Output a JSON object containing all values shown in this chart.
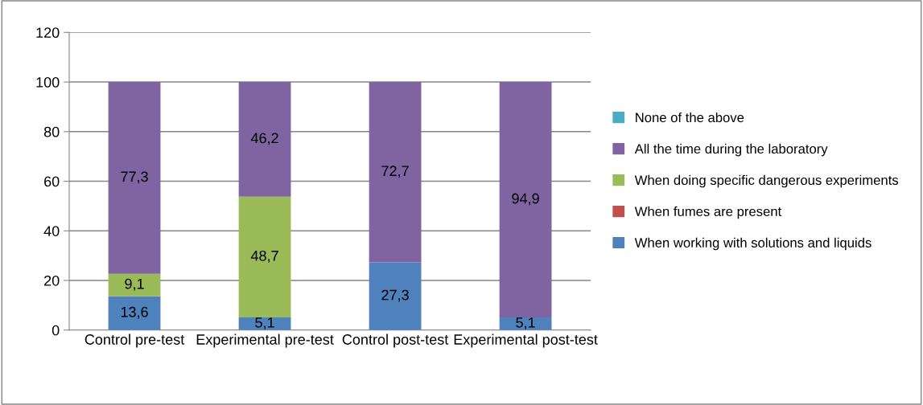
{
  "chart_data": {
    "type": "bar",
    "stacked": true,
    "categories": [
      "Control pre-test",
      "Experimental pre-test",
      "Control post-test",
      "Experimental post-test"
    ],
    "series": [
      {
        "name": "When working with solutions and liquids",
        "color": "#4f81bd",
        "values": [
          13.6,
          5.1,
          27.3,
          5.1
        ],
        "value_labels": [
          "13,6",
          "5,1",
          "27,3",
          "5,1"
        ]
      },
      {
        "name": "When fumes are present",
        "color": "#c0504d",
        "values": [
          0,
          0,
          0,
          0
        ],
        "value_labels": [
          null,
          null,
          null,
          null
        ]
      },
      {
        "name": "When doing specific dangerous experiments",
        "color": "#9bbb59",
        "values": [
          9.1,
          48.7,
          0,
          0
        ],
        "value_labels": [
          "9,1",
          "48,7",
          null,
          null
        ]
      },
      {
        "name": "All the time during the laboratory",
        "color": "#8064a2",
        "values": [
          77.3,
          46.2,
          72.7,
          94.9
        ],
        "value_labels": [
          "77,3",
          "46,2",
          "72,7",
          "94,9"
        ]
      },
      {
        "name": "None of the above",
        "color": "#4bacc6",
        "values": [
          0,
          0,
          0,
          0
        ],
        "value_labels": [
          null,
          null,
          null,
          null
        ]
      }
    ],
    "ylim": [
      0,
      120
    ],
    "yticks": [
      0,
      20,
      40,
      60,
      80,
      100,
      120
    ],
    "grid": "y",
    "legend": "right"
  }
}
